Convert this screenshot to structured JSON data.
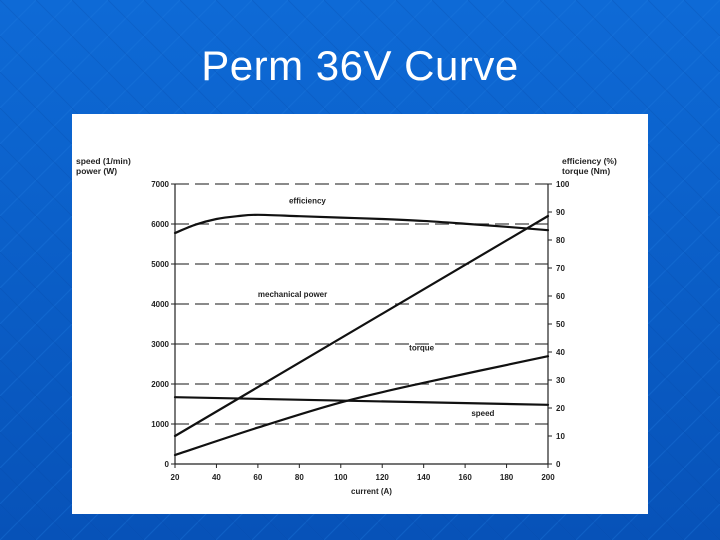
{
  "slide": {
    "title": "Perm 36V Curve"
  },
  "chart_data": {
    "type": "line",
    "xlabel": "current (A)",
    "ylabel_left": [
      "speed (1/min)",
      "power (W)"
    ],
    "ylabel_right": [
      "efficiency (%)",
      "torque (Nm)"
    ],
    "x_ticks": [
      "20",
      "40",
      "60",
      "80",
      "100",
      "120",
      "140",
      "160",
      "180",
      "200"
    ],
    "y_left_ticks": [
      "0",
      "1000",
      "2000",
      "3000",
      "4000",
      "5000",
      "6000",
      "7000"
    ],
    "y_right_ticks": [
      "0",
      "10",
      "20",
      "30",
      "40",
      "50",
      "60",
      "70",
      "80",
      "90",
      "100"
    ],
    "xlim": [
      20,
      200
    ],
    "ylim_left": [
      0,
      7000
    ],
    "ylim_right": [
      0,
      100
    ],
    "grid": "dashed horizontal",
    "series": [
      {
        "name": "efficiency",
        "axis": "right",
        "x": [
          20,
          30,
          40,
          50,
          60,
          80,
          100,
          120,
          140,
          160,
          180,
          200
        ],
        "y": [
          82.5,
          85.5,
          87.5,
          88.5,
          89,
          88.5,
          88,
          87.5,
          86.8,
          85.8,
          84.7,
          83.5
        ]
      },
      {
        "name": "mechanical power",
        "axis": "left",
        "x": [
          20,
          200
        ],
        "y": [
          700,
          6200
        ]
      },
      {
        "name": "torque",
        "axis": "right",
        "x": [
          20,
          60,
          100,
          140,
          200
        ],
        "y": [
          3.2,
          13,
          22,
          29,
          38.5
        ]
      },
      {
        "name": "speed",
        "axis": "left",
        "x": [
          20,
          200
        ],
        "y": [
          1670,
          1480
        ]
      }
    ]
  }
}
